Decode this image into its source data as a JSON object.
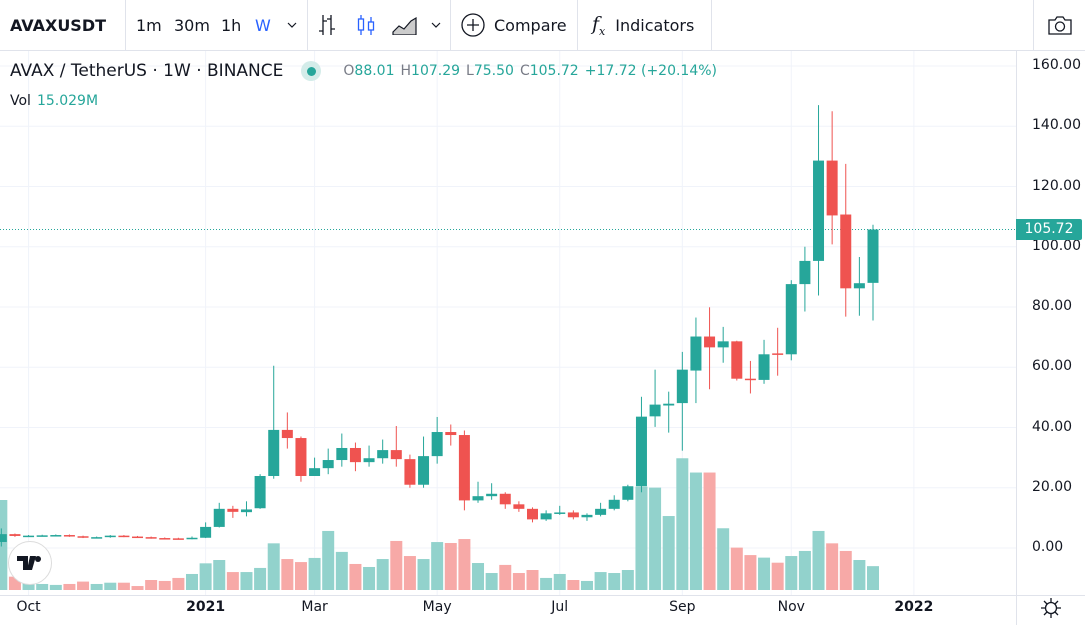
{
  "toolbar": {
    "symbol": "AVAXUSDT",
    "intervals": [
      "1m",
      "30m",
      "1h",
      "W"
    ],
    "active_interval": "W",
    "compare_label": "Compare",
    "indicators_label": "Indicators",
    "indicators_icon_text": "fx"
  },
  "legend": {
    "title": "AVAX / TetherUS · 1W · BINANCE",
    "open_label": "O",
    "open": "88.01",
    "high_label": "H",
    "high": "107.29",
    "low_label": "L",
    "low": "75.50",
    "close_label": "C",
    "close": "105.72",
    "change": "+17.72 (+20.14%)",
    "vol_label": "Vol",
    "vol_value": "15.029M"
  },
  "colors": {
    "up": "#26a69a",
    "down": "#ef5350",
    "up_vol": "#92d2cc",
    "down_vol": "#f7a9a7",
    "accent": "#2962ff"
  },
  "chart_data": {
    "type": "candlestick",
    "symbol": "AVAX / TetherUS",
    "interval": "1W",
    "price_ticks": [
      "160.00",
      "140.00",
      "120.00",
      "100.00",
      "80.00",
      "60.00",
      "40.00",
      "20.00",
      "0.00"
    ],
    "ylim": [
      0,
      160
    ],
    "last_price": "105.72",
    "time_labels": [
      {
        "label": "Oct",
        "bold": false,
        "index": 2
      },
      {
        "label": "2021",
        "bold": true,
        "index": 15
      },
      {
        "label": "Mar",
        "bold": false,
        "index": 23
      },
      {
        "label": "May",
        "bold": false,
        "index": 32
      },
      {
        "label": "Jul",
        "bold": false,
        "index": 41
      },
      {
        "label": "Sep",
        "bold": false,
        "index": 50
      },
      {
        "label": "Nov",
        "bold": false,
        "index": 58
      },
      {
        "label": "2022",
        "bold": true,
        "index": 67
      }
    ],
    "candles": [
      [
        2.0,
        6.5,
        0.5,
        4.6,
        56.7
      ],
      [
        4.6,
        4.8,
        3.7,
        4.0,
        8.4
      ],
      [
        3.9,
        4.3,
        3.7,
        4.1,
        5.3
      ],
      [
        4.0,
        4.4,
        3.8,
        4.2,
        3.8
      ],
      [
        4.1,
        4.5,
        3.9,
        4.3,
        3.2
      ],
      [
        4.3,
        4.5,
        3.7,
        3.9,
        3.8
      ],
      [
        3.9,
        4.1,
        3.3,
        3.5,
        5.3
      ],
      [
        3.5,
        3.8,
        3.3,
        3.6,
        3.8
      ],
      [
        3.6,
        4.3,
        3.4,
        4.1,
        4.6
      ],
      [
        4.1,
        4.3,
        3.6,
        3.8,
        4.6
      ],
      [
        3.8,
        4.0,
        3.4,
        3.6,
        2.5
      ],
      [
        3.6,
        3.8,
        3.1,
        3.3,
        6.3
      ],
      [
        3.3,
        3.5,
        3.0,
        3.2,
        5.7
      ],
      [
        3.2,
        3.4,
        2.8,
        3.0,
        7.6
      ],
      [
        3.0,
        3.8,
        2.9,
        3.4,
        10.1
      ],
      [
        3.4,
        8.5,
        3.3,
        7.0,
        16.8
      ],
      [
        7.0,
        15.0,
        6.8,
        13.0,
        18.9
      ],
      [
        13.0,
        14.0,
        10.0,
        12.0,
        11.3
      ],
      [
        11.9,
        15.5,
        10.5,
        12.8,
        11.3
      ],
      [
        13.2,
        24.5,
        13.0,
        23.9,
        13.9
      ],
      [
        23.9,
        60.5,
        23.0,
        39.2,
        29.4
      ],
      [
        39.2,
        45.0,
        33.0,
        36.5,
        19.5
      ],
      [
        36.5,
        37.0,
        22.0,
        23.9,
        17.6
      ],
      [
        23.9,
        30.0,
        24.0,
        26.5,
        20.2
      ],
      [
        26.5,
        33.0,
        24.5,
        29.2,
        37.2
      ],
      [
        29.2,
        38.0,
        27.0,
        33.2,
        24.0
      ],
      [
        33.2,
        35.0,
        25.5,
        28.5,
        16.4
      ],
      [
        28.5,
        34.0,
        27.0,
        29.8,
        14.5
      ],
      [
        29.8,
        36.0,
        28.0,
        32.5,
        19.5
      ],
      [
        32.5,
        40.5,
        27.0,
        29.5,
        30.9
      ],
      [
        29.5,
        31.0,
        20.0,
        21.0,
        21.4
      ],
      [
        21.0,
        37.0,
        20.0,
        30.5,
        19.5
      ],
      [
        30.5,
        43.5,
        28.0,
        38.5,
        30.2
      ],
      [
        38.5,
        41.0,
        34.0,
        37.5,
        29.6
      ],
      [
        37.5,
        39.0,
        12.5,
        15.8,
        32.1
      ],
      [
        15.8,
        22.0,
        15.0,
        17.2,
        17.0
      ],
      [
        17.2,
        21.5,
        16.0,
        18.0,
        10.7
      ],
      [
        18.0,
        18.5,
        13.0,
        14.5,
        15.8
      ],
      [
        14.5,
        15.5,
        12.0,
        13.0,
        10.7
      ],
      [
        13.0,
        13.5,
        8.5,
        9.5,
        12.6
      ],
      [
        9.5,
        12.5,
        9.0,
        11.5,
        7.6
      ],
      [
        11.5,
        14.0,
        11.0,
        11.8,
        10.1
      ],
      [
        11.8,
        12.5,
        9.5,
        10.2,
        6.3
      ],
      [
        10.2,
        11.5,
        9.0,
        11.0,
        5.7
      ],
      [
        11.0,
        15.0,
        10.5,
        13.0,
        11.3
      ],
      [
        13.0,
        17.5,
        12.5,
        16.0,
        10.7
      ],
      [
        16.0,
        21.0,
        15.5,
        20.5,
        12.6
      ],
      [
        20.5,
        50.2,
        18.5,
        43.6,
        65.1
      ],
      [
        43.7,
        59.2,
        40.2,
        47.6,
        64.5
      ],
      [
        47.3,
        51.9,
        38.3,
        47.9,
        46.6
      ],
      [
        48.1,
        65.1,
        32.3,
        59.2,
        83.0
      ],
      [
        58.9,
        76.5,
        48.1,
        70.2,
        74.0
      ],
      [
        70.2,
        79.9,
        52.7,
        66.6,
        74.0
      ],
      [
        66.6,
        73.4,
        61.5,
        68.6,
        38.9
      ],
      [
        68.6,
        68.8,
        55.6,
        56.2,
        26.7
      ],
      [
        56.2,
        62.1,
        51.3,
        55.8,
        22.0
      ],
      [
        55.8,
        69.1,
        54.5,
        64.3,
        20.4
      ],
      [
        64.6,
        73.1,
        57.2,
        64.2,
        17.2
      ],
      [
        64.3,
        88.9,
        62.3,
        87.6,
        21.4
      ],
      [
        87.6,
        100.0,
        78.5,
        95.3,
        24.6
      ],
      [
        95.3,
        147.0,
        83.8,
        128.6,
        37.2
      ],
      [
        128.6,
        145.0,
        100.8,
        110.4,
        29.4
      ],
      [
        110.7,
        127.5,
        76.8,
        86.2,
        24.6
      ],
      [
        86.2,
        96.6,
        77.1,
        87.9,
        18.9
      ],
      [
        88.01,
        107.29,
        75.5,
        105.72,
        15.029
      ]
    ],
    "candle_fields": [
      "open",
      "high",
      "low",
      "close",
      "volume_M"
    ]
  }
}
